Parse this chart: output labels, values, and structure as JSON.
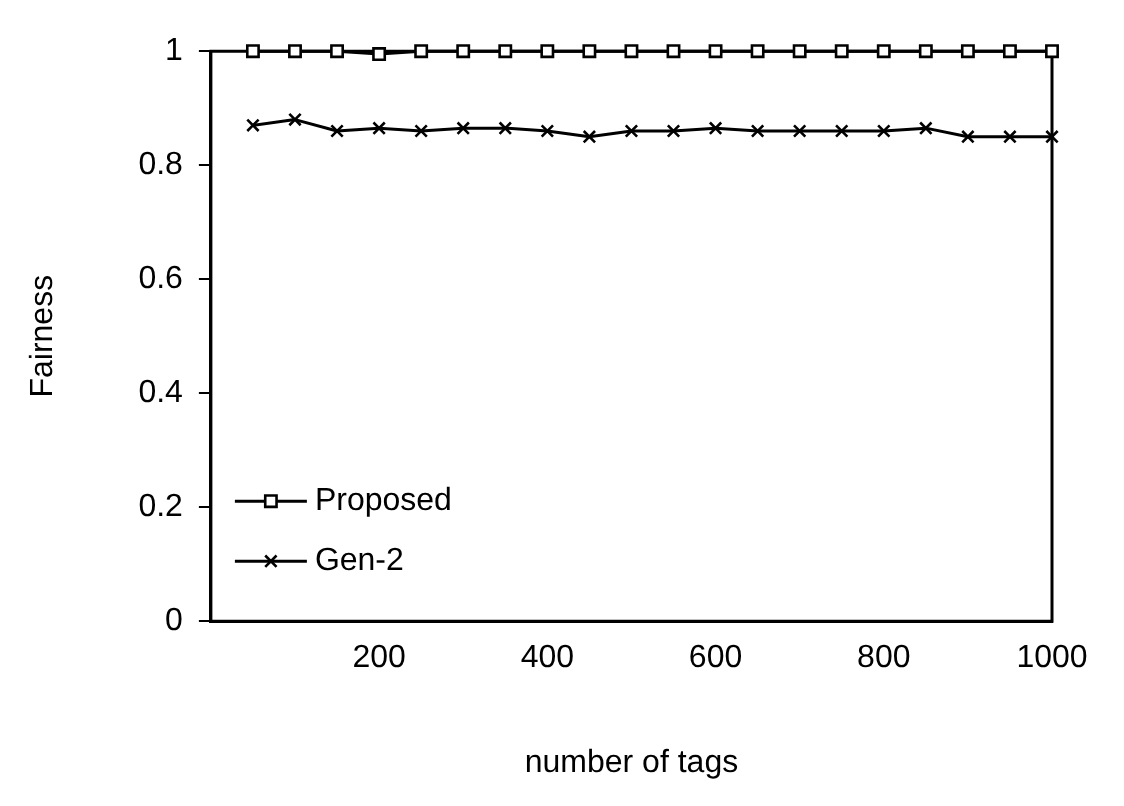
{
  "chart_data": {
    "type": "line",
    "xlabel": "number of tags",
    "ylabel": "Fairness",
    "x": [
      50,
      100,
      150,
      200,
      250,
      300,
      350,
      400,
      450,
      500,
      550,
      600,
      650,
      700,
      750,
      800,
      850,
      900,
      950,
      1000
    ],
    "series": [
      {
        "name": "Proposed",
        "color": "#000000",
        "marker": "square",
        "values": [
          1,
          1,
          1,
          0.995,
          1,
          1,
          1,
          1,
          1,
          1,
          1,
          1,
          1,
          1,
          1,
          1,
          1,
          1,
          1,
          1
        ]
      },
      {
        "name": "Gen-2",
        "color": "#000000",
        "marker": "cross",
        "values": [
          0.87,
          0.88,
          0.86,
          0.865,
          0.86,
          0.865,
          0.865,
          0.86,
          0.85,
          0.86,
          0.86,
          0.865,
          0.86,
          0.86,
          0.86,
          0.86,
          0.865,
          0.85,
          0.85,
          0.85
        ]
      }
    ],
    "xlim": [
      0,
      1000
    ],
    "xticks": [
      200,
      400,
      600,
      800,
      1000
    ],
    "ylim": [
      0,
      1
    ],
    "yticks": [
      0,
      0.2,
      0.4,
      0.6,
      0.8,
      1
    ],
    "grid": false,
    "legend": "bottom left",
    "line_style": "solid"
  }
}
